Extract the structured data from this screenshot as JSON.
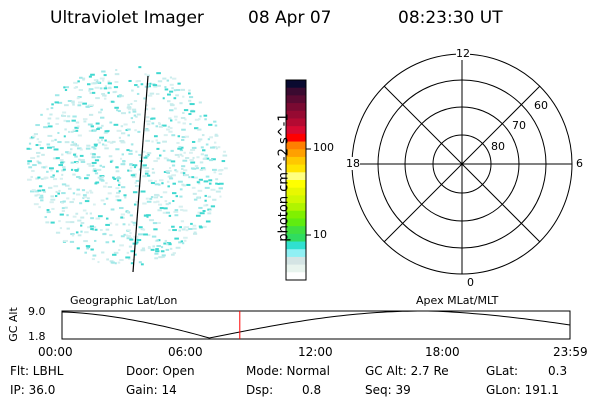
{
  "header": {
    "instrument": "Ultraviolet Imager",
    "date": "08 Apr 07",
    "time": "08:23:30 UT"
  },
  "colorbar": {
    "label": "photon cm^-2 s^-1",
    "ticks": [
      "100",
      "10"
    ],
    "colors": [
      "#0a0a30",
      "#3a0a30",
      "#5a0a32",
      "#7a0a32",
      "#960a32",
      "#b40a32",
      "#d80a32",
      "#ff0000",
      "#ff7f00",
      "#ffa000",
      "#ffc800",
      "#ffe400",
      "#ffff80",
      "#ffff00",
      "#e8f800",
      "#d0f800",
      "#b0f400",
      "#80f000",
      "#60ec10",
      "#40e040",
      "#30dc60",
      "#30e0d0",
      "#90f0f4",
      "#d4e4e4",
      "#e8f4ee",
      "#ffffff"
    ]
  },
  "polar_grid": {
    "mlt_labels": [
      "12",
      "18",
      "6",
      "0"
    ],
    "lat_labels": [
      "60",
      "70",
      "80"
    ]
  },
  "timeline": {
    "left_label": "Geographic Lat/Lon",
    "right_label": "Apex MLat/MLT",
    "ylabel": "GC Alt",
    "yticks": [
      "9.0",
      "1.8"
    ],
    "xticks": [
      "00:00",
      "06:00",
      "12:00",
      "18:00",
      "23:59"
    ],
    "current_time_fraction": 0.35,
    "marker_color": "#ff0000"
  },
  "status": {
    "filter": "Flt: LBHL",
    "ip": "IP: 36.0",
    "door": "Door: Open",
    "gain": "Gain: 14",
    "mode": "Mode: Normal",
    "dsp_label": "Dsp:",
    "dsp_value": "0.8",
    "gc_alt": "GC Alt: 2.7 Re",
    "seq": "Seq: 39",
    "glat_label": "GLat:",
    "glat_value": "0.3",
    "glon": "GLon: 191.1"
  }
}
